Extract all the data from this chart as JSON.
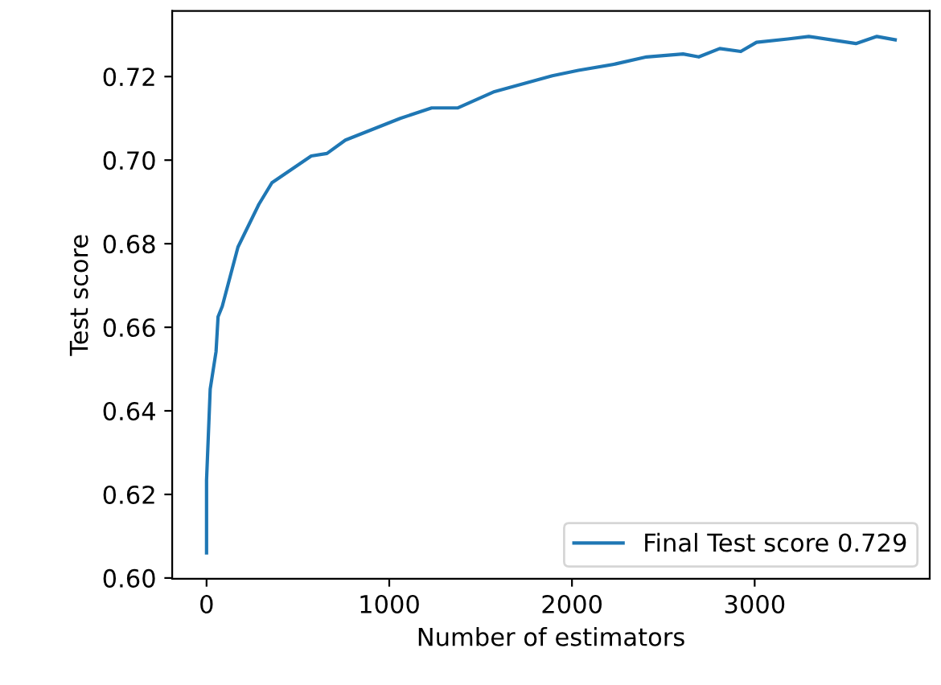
{
  "chart_data": {
    "type": "line",
    "xlabel": "Number of estimators",
    "ylabel": "Test score",
    "x": [
      0,
      0,
      20,
      52,
      63,
      86,
      172,
      286,
      358,
      573,
      659,
      760,
      1060,
      1232,
      1376,
      1576,
      1892,
      2035,
      2236,
      2408,
      2608,
      2694,
      2809,
      2924,
      3010,
      3181,
      3296,
      3554,
      3669,
      3769
    ],
    "series": [
      {
        "name": "Final Test score 0.729",
        "color": "#1f77b4",
        "values": [
          0.606,
          0.6234,
          0.6452,
          0.6542,
          0.6625,
          0.665,
          0.6792,
          0.6894,
          0.6946,
          0.701,
          0.7016,
          0.7048,
          0.71,
          0.7125,
          0.7125,
          0.7164,
          0.7202,
          0.7215,
          0.723,
          0.7247,
          0.7254,
          0.7247,
          0.7267,
          0.726,
          0.7282,
          0.729,
          0.7296,
          0.7279,
          0.7296,
          0.7288
        ]
      }
    ],
    "xlim": [
      -188,
      3958
    ],
    "ylim": [
      0.5998,
      0.7357
    ],
    "xticks": [
      0,
      1000,
      2000,
      3000
    ],
    "yticks": [
      {
        "value": 0.6,
        "label": "0.60"
      },
      {
        "value": 0.62,
        "label": "0.62"
      },
      {
        "value": 0.64,
        "label": "0.64"
      },
      {
        "value": 0.66,
        "label": "0.66"
      },
      {
        "value": 0.68,
        "label": "0.68"
      },
      {
        "value": 0.7,
        "label": "0.70"
      },
      {
        "value": 0.72,
        "label": "0.72"
      }
    ],
    "legend": "lower right",
    "grid": false
  }
}
